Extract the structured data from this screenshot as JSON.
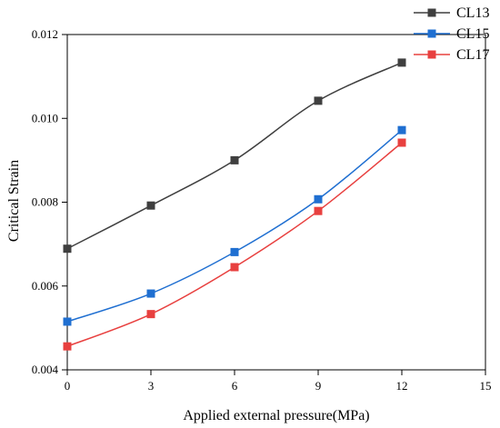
{
  "chart_data": {
    "type": "line",
    "title": "",
    "xlabel": "Applied external pressure(MPa)",
    "ylabel": "Critical Strain",
    "xlim": [
      0,
      15
    ],
    "ylim": [
      0.004,
      0.012
    ],
    "xticks": [
      0,
      3,
      6,
      9,
      12,
      15
    ],
    "yticks": [
      0.004,
      0.006,
      0.008,
      0.01,
      0.012
    ],
    "xtick_labels": [
      "0",
      "3",
      "6",
      "9",
      "12",
      "15"
    ],
    "ytick_labels": [
      "0.004",
      "0.006",
      "0.008",
      "0.010",
      "0.012"
    ],
    "grid": false,
    "legend_position": "top-right",
    "x": [
      0,
      3,
      6,
      9,
      12
    ],
    "series": [
      {
        "name": "CL13",
        "color": "#3f3f3f",
        "marker": "square",
        "values": [
          0.00689,
          0.00792,
          0.009,
          0.01042,
          0.01133
        ]
      },
      {
        "name": "CL15",
        "color": "#1f6fd1",
        "marker": "square",
        "values": [
          0.00515,
          0.00582,
          0.00681,
          0.00807,
          0.00972
        ]
      },
      {
        "name": "CL17",
        "color": "#e8403f",
        "marker": "square",
        "values": [
          0.00456,
          0.00533,
          0.00645,
          0.00779,
          0.00942
        ]
      }
    ]
  }
}
